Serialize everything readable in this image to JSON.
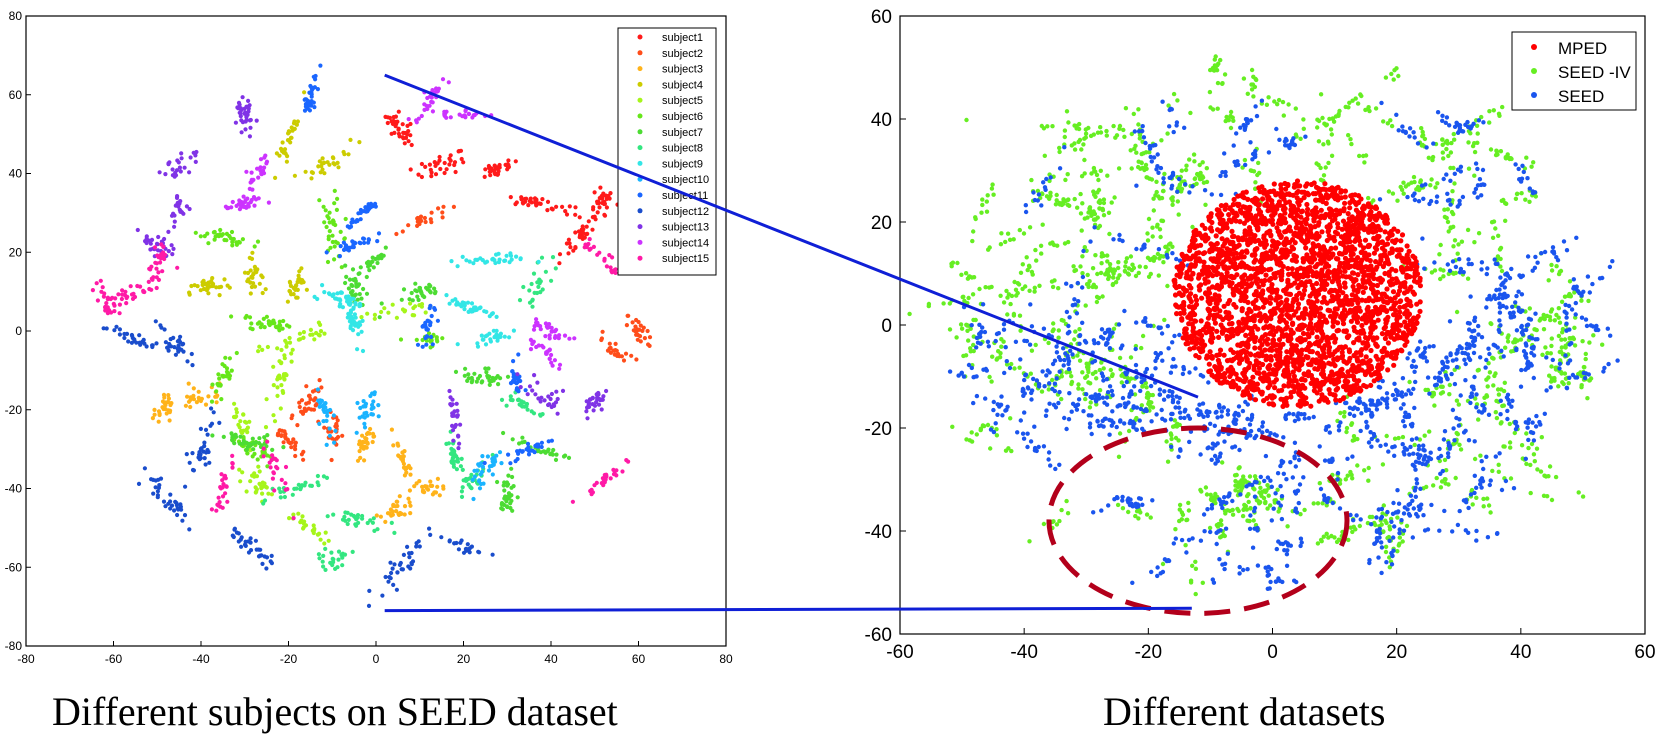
{
  "chart_data": [
    {
      "type": "scatter",
      "title": "",
      "xlabel": "",
      "ylabel": "",
      "xlim": [
        -80,
        80
      ],
      "ylim": [
        -80,
        80
      ],
      "xticks": [
        "-80",
        "-60",
        "-40",
        "-20",
        "0",
        "20",
        "40",
        "60",
        "80"
      ],
      "yticks": [
        "80",
        "60",
        "40",
        "20",
        "0",
        "-20",
        "-40",
        "-60",
        "-80"
      ],
      "legend_position": "top-right",
      "caption": "Different subjects on SEED dataset",
      "series": [
        {
          "name": "subject1",
          "color": "#ff1a1a",
          "clusters": [
            [
              5,
              52
            ],
            [
              15,
              42
            ],
            [
              28,
              41
            ],
            [
              38,
              32
            ],
            [
              47,
              25
            ],
            [
              52,
              33
            ]
          ]
        },
        {
          "name": "subject2",
          "color": "#ff4d1a",
          "clusters": [
            [
              10,
              28
            ],
            [
              -10,
              -25
            ],
            [
              -15,
              -18
            ],
            [
              60,
              0
            ],
            [
              55,
              -5
            ],
            [
              -20,
              -28
            ]
          ]
        },
        {
          "name": "subject3",
          "color": "#ffb31a",
          "clusters": [
            [
              -40,
              -17
            ],
            [
              -48,
              -20
            ],
            [
              -2,
              -28
            ],
            [
              6,
              -32
            ],
            [
              5,
              -45
            ],
            [
              12,
              -40
            ]
          ]
        },
        {
          "name": "subject4",
          "color": "#cccc00",
          "clusters": [
            [
              -20,
              48
            ],
            [
              -12,
              42
            ],
            [
              -38,
              11
            ],
            [
              -28,
              14
            ],
            [
              -18,
              12
            ]
          ]
        },
        {
          "name": "subject5",
          "color": "#a6f51a",
          "clusters": [
            [
              -22,
              -12
            ],
            [
              -30,
              -25
            ],
            [
              -26,
              -40
            ],
            [
              -15,
              -50
            ],
            [
              5,
              5
            ],
            [
              -18,
              -2
            ]
          ]
        },
        {
          "name": "subject6",
          "color": "#66e61a",
          "clusters": [
            [
              -35,
              24
            ],
            [
              -25,
              2
            ],
            [
              -10,
              26
            ],
            [
              -35,
              -12
            ],
            [
              12,
              -2
            ],
            [
              -28,
              -30
            ]
          ]
        },
        {
          "name": "subject7",
          "color": "#4ddc33",
          "clusters": [
            [
              0,
              18
            ],
            [
              -5,
              12
            ],
            [
              10,
              10
            ],
            [
              -30,
              -28
            ],
            [
              25,
              -12
            ],
            [
              38,
              -30
            ],
            [
              30,
              -42
            ]
          ]
        },
        {
          "name": "subject8",
          "color": "#33e680",
          "clusters": [
            [
              37,
              12
            ],
            [
              33,
              -18
            ],
            [
              18,
              -32
            ],
            [
              22,
              -38
            ],
            [
              -18,
              -40
            ],
            [
              -10,
              -58
            ],
            [
              -5,
              -48
            ]
          ]
        },
        {
          "name": "subject9",
          "color": "#33e6e6",
          "clusters": [
            [
              -8,
              8
            ],
            [
              -5,
              2
            ],
            [
              25,
              18
            ],
            [
              22,
              6
            ],
            [
              26,
              -2
            ]
          ]
        },
        {
          "name": "subject10",
          "color": "#1ab3ff",
          "clusters": [
            [
              -12,
              -20
            ],
            [
              25,
              -35
            ],
            [
              -2,
              -20
            ]
          ]
        },
        {
          "name": "subject11",
          "color": "#1a66ff",
          "clusters": [
            [
              -3,
              30
            ],
            [
              -5,
              22
            ],
            [
              12,
              2
            ],
            [
              32,
              -12
            ],
            [
              35,
              -30
            ],
            [
              -15,
              60
            ]
          ]
        },
        {
          "name": "subject12",
          "color": "#1a4dcc",
          "clusters": [
            [
              -40,
              -30
            ],
            [
              -28,
              -55
            ],
            [
              20,
              -55
            ],
            [
              5,
              -60
            ],
            [
              -48,
              -42
            ],
            [
              -55,
              -2
            ],
            [
              -45,
              -4
            ]
          ]
        },
        {
          "name": "subject13",
          "color": "#8033e6",
          "clusters": [
            [
              -45,
              42
            ],
            [
              -45,
              30
            ],
            [
              -50,
              22
            ],
            [
              18,
              -22
            ],
            [
              40,
              -18
            ],
            [
              50,
              -18
            ],
            [
              -30,
              55
            ]
          ]
        },
        {
          "name": "subject14",
          "color": "#cc33ff",
          "clusters": [
            [
              -28,
              38
            ],
            [
              -30,
              32
            ],
            [
              12,
              58
            ],
            [
              20,
              55
            ],
            [
              40,
              0
            ],
            [
              38,
              -5
            ]
          ]
        },
        {
          "name": "subject15",
          "color": "#ff1aa6",
          "clusters": [
            [
              -62,
              8
            ],
            [
              -55,
              10
            ],
            [
              -50,
              17
            ],
            [
              -35,
              -40
            ],
            [
              -22,
              -38
            ],
            [
              52,
              -38
            ],
            [
              52,
              18
            ]
          ]
        }
      ]
    },
    {
      "type": "scatter",
      "title": "",
      "xlabel": "",
      "ylabel": "",
      "xlim": [
        -60,
        60
      ],
      "ylim": [
        -60,
        60
      ],
      "xticks": [
        "-60",
        "-40",
        "-20",
        "0",
        "20",
        "40",
        "60"
      ],
      "yticks": [
        "60",
        "40",
        "20",
        "0",
        "-20",
        "-40",
        "-60"
      ],
      "legend_position": "top-right",
      "caption": "Different datasets",
      "series": [
        {
          "name": "MPED",
          "color": "#ff0000",
          "center": [
            4,
            6
          ],
          "radius": [
            20,
            22
          ]
        },
        {
          "name": "SEED -IV",
          "color": "#66ee22",
          "center": [
            0,
            0
          ],
          "radius": [
            54,
            52
          ]
        },
        {
          "name": "SEED",
          "color": "#1a55ee",
          "center": [
            0,
            0
          ],
          "radius": [
            52,
            50
          ]
        }
      ],
      "annotation": {
        "type": "dashed-ellipse",
        "center": [
          -12,
          -38
        ],
        "radii": [
          24,
          18
        ],
        "color": "#b3001b"
      }
    }
  ],
  "connectors": [
    {
      "from": [
        2,
        65
      ],
      "to": [
        -12,
        -14
      ],
      "note": "upper line from left chart to right chart"
    },
    {
      "from": [
        2,
        -71
      ],
      "to": [
        -13,
        -55
      ],
      "note": "lower line from left chart to right chart"
    }
  ]
}
